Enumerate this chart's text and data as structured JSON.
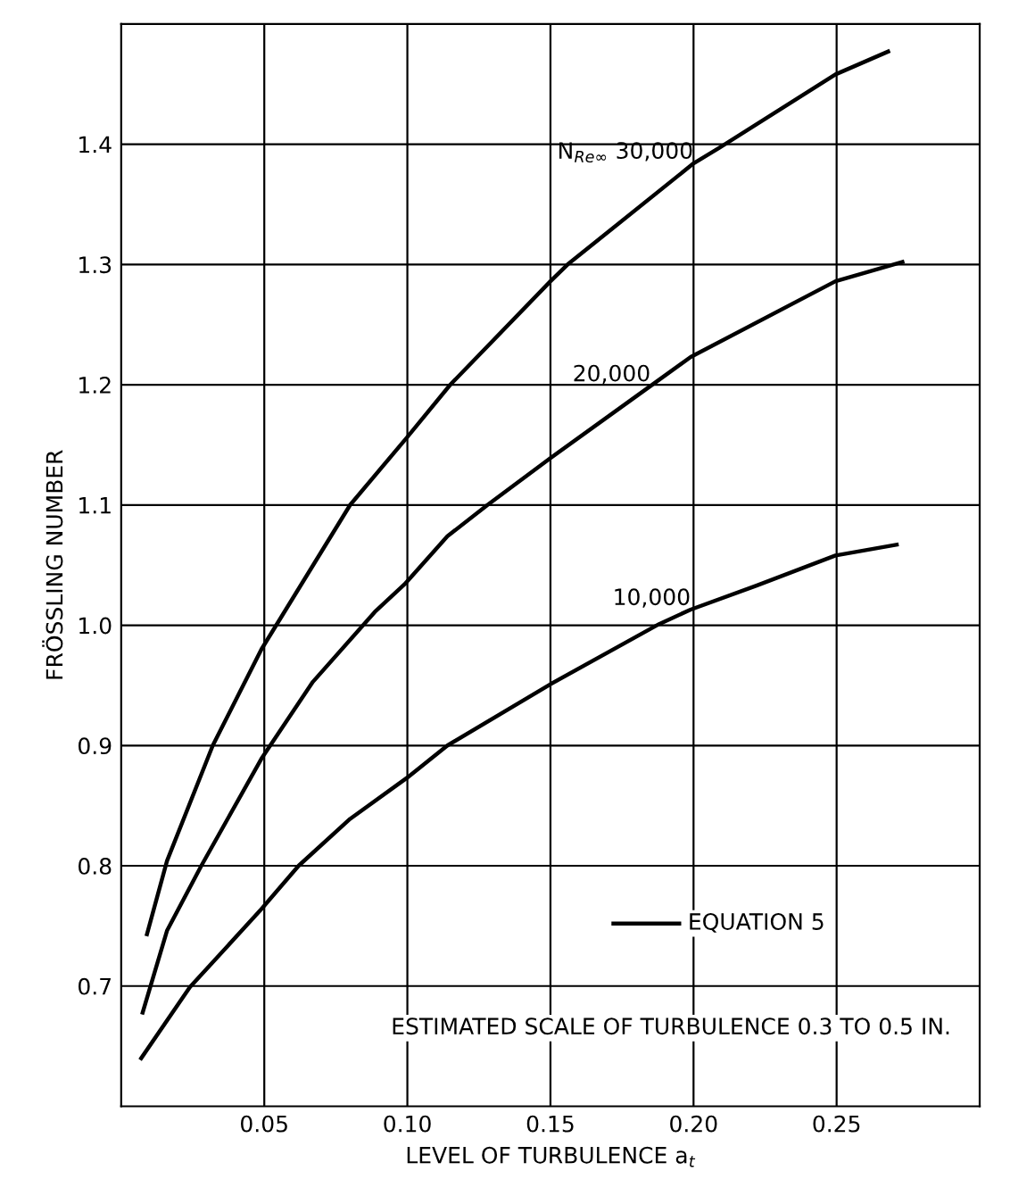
{
  "chart_data": {
    "type": "line",
    "xlabel": "LEVEL OF TURBULENCE a$_{t}$",
    "ylabel": "FRÖSSLING NUMBER",
    "xlim": [
      0,
      0.3
    ],
    "ylim": [
      0.6,
      1.5
    ],
    "xticks": [
      0.05,
      {
        "value": 0.1,
        "label": "0.10"
      },
      0.15,
      {
        "value": 0.2,
        "label": "0.20"
      },
      0.25
    ],
    "yticks": [
      0.7,
      0.8,
      0.9,
      {
        "value": 1.0,
        "label": "1.0"
      },
      1.1,
      1.2,
      1.3,
      1.4
    ],
    "grid": true,
    "line_style": "solid",
    "marker": "none",
    "annotations": [
      "EQUATION 5",
      "ESTIMATED SCALE OF TURBULENCE 0.3 TO 0.5 IN."
    ],
    "series": [
      {
        "name": "N$_{Re∞}$ 30,000",
        "color": "#000000",
        "x": [
          0.009,
          0.016,
          0.032,
          0.049,
          0.08,
          0.0998,
          0.115,
          0.15,
          0.156,
          0.2,
          0.209,
          0.2496,
          0.268
        ],
        "values": [
          0.743,
          0.804,
          0.9,
          0.98,
          1.1,
          1.156,
          1.2,
          1.286,
          1.3,
          1.384,
          1.397,
          1.458,
          1.477
        ]
      },
      {
        "name": "20,000",
        "color": "#000000",
        "x": [
          0.0075,
          0.016,
          0.028,
          0.049,
          0.067,
          0.0886,
          0.099,
          0.114,
          0.128,
          0.15,
          0.185,
          0.199,
          0.2496,
          0.273
        ],
        "values": [
          0.678,
          0.746,
          0.8,
          0.889,
          0.953,
          1.011,
          1.034,
          1.074,
          1.1,
          1.139,
          1.199,
          1.223,
          1.286,
          1.302
        ]
      },
      {
        "name": "10,000",
        "color": "#000000",
        "x": [
          0.007,
          0.024,
          0.049,
          0.062,
          0.08,
          0.0998,
          0.114,
          0.15,
          0.188,
          0.199,
          0.222,
          0.2496,
          0.271
        ],
        "values": [
          0.64,
          0.699,
          0.764,
          0.8,
          0.839,
          0.873,
          0.9,
          0.951,
          1.001,
          1.013,
          1.033,
          1.058,
          1.067
        ]
      }
    ]
  }
}
